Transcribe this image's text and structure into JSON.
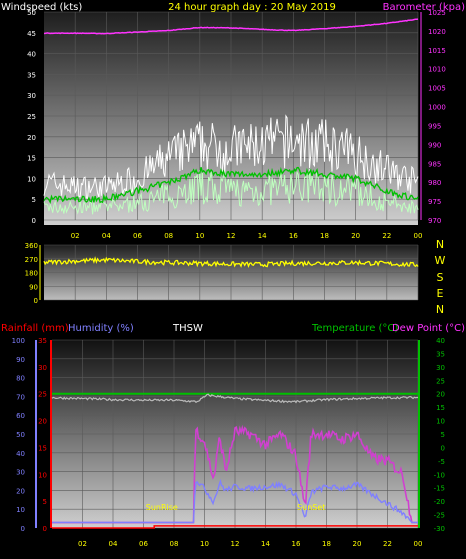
{
  "colors": {
    "background": "#000000",
    "wind_gust": "#ffffff",
    "wind_avg": "#bfffbf",
    "wind_mean": "#00c000",
    "barometer": "#ff33ff",
    "direction": "#ffff00",
    "rain": "#ff0000",
    "humidity": "#8080ff",
    "thsw": "#d040d0",
    "temperature": "#00c000",
    "dewpoint": "#bbbbbb",
    "text_yellow": "#ffff00"
  },
  "chart_data": [
    {
      "type": "line",
      "title": "24 hour graph day : 20 May 2019",
      "left_axis_label": "Windspeed (kts)",
      "right_axis_label": "Barometer (kpa)",
      "x_ticks": [
        "02",
        "04",
        "06",
        "08",
        "10",
        "12",
        "14",
        "16",
        "18",
        "20",
        "22",
        "00"
      ],
      "ylim_left": [
        0,
        50
      ],
      "y_ticks_left": [
        "0",
        "5",
        "10",
        "15",
        "20",
        "25",
        "30",
        "35",
        "40",
        "45",
        "50"
      ],
      "ylim_right": [
        970,
        1025
      ],
      "y_ticks_right": [
        "970",
        "975",
        "980",
        "985",
        "990",
        "995",
        "1000",
        "1005",
        "1010",
        "1015",
        "1020",
        "1025"
      ],
      "grid": true,
      "series": [
        {
          "key": "gust",
          "x": [
            0,
            2,
            4,
            6,
            8,
            10,
            12,
            14,
            16,
            18,
            20,
            22,
            24
          ],
          "y": [
            9,
            8,
            8,
            10,
            15,
            18,
            17,
            18,
            19,
            18,
            16,
            12,
            9
          ]
        },
        {
          "key": "wind_avg",
          "x": [
            0,
            2,
            4,
            6,
            8,
            10,
            12,
            14,
            16,
            18,
            20,
            22,
            24
          ],
          "y": [
            3,
            3,
            3,
            4,
            6,
            8,
            7,
            7,
            8,
            8,
            7,
            4,
            3
          ]
        },
        {
          "key": "wind_mean",
          "x": [
            0,
            2,
            4,
            6,
            8,
            10,
            12,
            14,
            16,
            18,
            20,
            22,
            24
          ],
          "y": [
            5,
            5,
            5,
            7,
            9,
            12,
            11,
            11,
            12,
            11,
            10,
            7,
            5
          ]
        },
        {
          "key": "barometer",
          "x": [
            0,
            2,
            4,
            6,
            8,
            10,
            12,
            14,
            16,
            18,
            20,
            22,
            24
          ],
          "y": [
            1019.4,
            1019.4,
            1019.3,
            1019.7,
            1020.1,
            1020.9,
            1020.8,
            1020.4,
            1020.1,
            1020.6,
            1021.2,
            1022.0,
            1023.1
          ]
        }
      ]
    },
    {
      "type": "line",
      "y_ticks": [
        "0",
        "90",
        "180",
        "270",
        "360"
      ],
      "ylim": [
        0,
        360
      ],
      "compass": [
        "N",
        "W",
        "S",
        "E",
        "N"
      ],
      "x_ticks": [
        "02",
        "04",
        "06",
        "08",
        "10",
        "12",
        "14",
        "16",
        "18",
        "20",
        "22",
        "00"
      ],
      "series": [
        {
          "key": "direction",
          "x": [
            0,
            2,
            4,
            6,
            8,
            10,
            12,
            14,
            16,
            18,
            20,
            22,
            24
          ],
          "y": [
            245,
            255,
            262,
            252,
            245,
            240,
            235,
            232,
            240,
            242,
            245,
            238,
            230
          ]
        }
      ]
    },
    {
      "type": "line",
      "labels": {
        "rainfall": "Rainfall (mm)",
        "humidity": "Humidity (%)",
        "thsw": "THSW",
        "temperature": "Temperature (°C)",
        "dewpoint": "Dew Point (°C)"
      },
      "y_ticks_humidity": [
        "0",
        "10",
        "20",
        "30",
        "40",
        "50",
        "60",
        "70",
        "80",
        "90",
        "100"
      ],
      "ylim_humidity": [
        0,
        100
      ],
      "y_ticks_rain": [
        "0",
        "5",
        "10",
        "15",
        "20",
        "25",
        "30",
        "35"
      ],
      "ylim_rain": [
        0,
        35
      ],
      "y_ticks_temp": [
        "-30",
        "-25",
        "-20",
        "-15",
        "-10",
        "-5",
        "0",
        "5",
        "10",
        "15",
        "20",
        "25",
        "30",
        "35",
        "40"
      ],
      "ylim_temp": [
        -30,
        40
      ],
      "x_ticks": [
        "02",
        "04",
        "06",
        "08",
        "10",
        "12",
        "14",
        "16",
        "18",
        "20",
        "22",
        "00"
      ],
      "annotations": [
        {
          "text": "SunRise",
          "x": 7.2
        },
        {
          "text": "SunSet",
          "x": 17.0
        }
      ],
      "series": [
        {
          "key": "temperature",
          "x": [
            0,
            4,
            8,
            12,
            16,
            20,
            24
          ],
          "y": [
            20,
            20,
            20,
            20,
            20,
            20,
            20
          ]
        },
        {
          "key": "dewpoint",
          "x": [
            0,
            2,
            4,
            6,
            8,
            9.5,
            10.2,
            12,
            14,
            16,
            18,
            20,
            22,
            24
          ],
          "y": [
            18.5,
            18.2,
            17.8,
            17.6,
            17.6,
            17.0,
            19.5,
            18.2,
            17.5,
            17.0,
            17.8,
            18.2,
            18.5,
            18.6
          ]
        },
        {
          "key": "rainfall",
          "x": [
            0,
            6.7,
            6.7,
            24
          ],
          "y": [
            0,
            0,
            0.4,
            0.4
          ]
        },
        {
          "key": "humidity",
          "x": [
            0,
            9.3,
            9.4,
            10,
            10.6,
            11,
            11.4,
            12,
            13,
            14,
            15,
            16,
            16.6,
            17,
            18,
            19,
            20,
            21,
            22,
            23,
            23.6,
            24
          ],
          "y": [
            3,
            3,
            26,
            21,
            14,
            24,
            20,
            22,
            21,
            22,
            23,
            18,
            5,
            19,
            22,
            21,
            23,
            18,
            13,
            8,
            3,
            3
          ]
        },
        {
          "key": "thsw",
          "x": [
            0,
            9.3,
            9.4,
            10,
            10.6,
            11,
            11.4,
            12,
            13,
            14,
            15,
            16,
            16.6,
            17,
            18,
            19,
            20,
            21,
            22,
            23,
            23.6,
            24
          ],
          "y": [
            -28,
            -28,
            7,
            2,
            -12,
            4,
            -9,
            6,
            5,
            1,
            5,
            -3,
            -22,
            5,
            5,
            3,
            5,
            -4,
            -5,
            -10,
            -28,
            -28
          ]
        }
      ]
    }
  ]
}
